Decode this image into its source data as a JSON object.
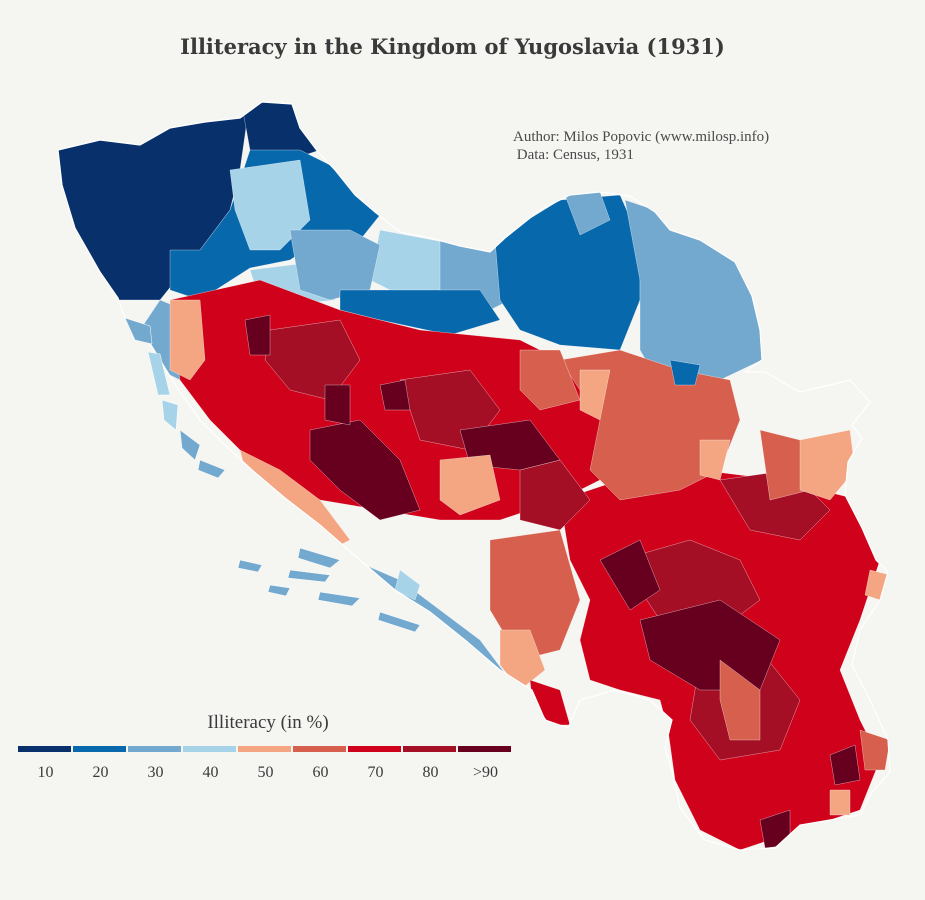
{
  "title": "Illiteracy in the Kingdom of Yugoslavia (1931)",
  "credits": {
    "author": "Author: Milos Popovic (www.milosp.info)",
    "data": " Data: Census, 1931"
  },
  "legend": {
    "title": "Illiteracy (in %)",
    "classes": [
      {
        "label": "10",
        "color": "#08306b"
      },
      {
        "label": "20",
        "color": "#0868ac"
      },
      {
        "label": "30",
        "color": "#74a9cf"
      },
      {
        "label": "40",
        "color": "#a6d3e8"
      },
      {
        "label": "50",
        "color": "#f4a582"
      },
      {
        "label": "60",
        "color": "#d6604d"
      },
      {
        "label": "70",
        "color": "#d0021b"
      },
      {
        "label": "80",
        "color": "#a50f25"
      },
      {
        "label": ">90",
        "color": "#67001f"
      }
    ]
  }
}
